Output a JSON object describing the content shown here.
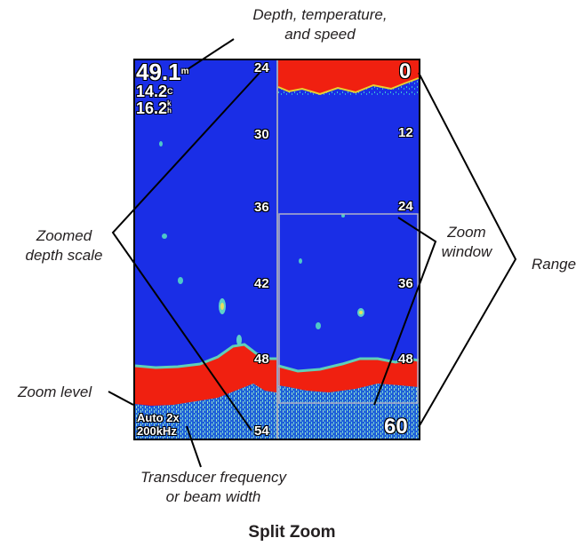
{
  "callouts": {
    "depth_temp_speed_line1": "Depth, temperature,",
    "depth_temp_speed_line2": "and speed",
    "zoomed_depth_scale_line1": "Zoomed",
    "zoomed_depth_scale_line2": "depth scale",
    "zoom_level": "Zoom level",
    "transducer_line1": "Transducer frequency",
    "transducer_line2": "or beam width",
    "zoom_window_line1": "Zoom",
    "zoom_window_line2": "window",
    "range": "Range"
  },
  "screen": {
    "depth": "49.1",
    "depth_unit": "m",
    "temperature": "14.2",
    "temperature_unit": "C",
    "speed": "16.2",
    "speed_unit": "k",
    "speed_unit2": "h",
    "zoom_mode": "Auto 2x",
    "frequency": "200kHz",
    "left_scale": [
      "24",
      "30",
      "36",
      "42",
      "48",
      "54"
    ],
    "right_scale_top": "0",
    "right_scale": [
      "12",
      "24",
      "36",
      "48"
    ],
    "right_scale_bottom": "60"
  },
  "caption": "Split Zoom",
  "colors": {
    "water": "#1a2ee6",
    "bottom": "#f02010",
    "bottom_edge": "#f0e020",
    "clutter": "#36b6c6",
    "window_border": "#b0b0c8",
    "line": "#000000"
  }
}
